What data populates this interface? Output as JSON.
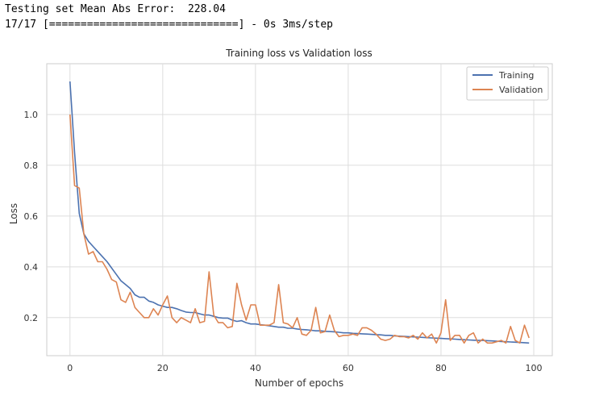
{
  "console": {
    "line1": "Testing set Mean Abs Error:  228.04",
    "line2": "17/17 [==============================] - 0s 3ms/step"
  },
  "chart_data": {
    "type": "line",
    "title": "Training loss vs Validation loss",
    "xlabel": "Number of epochs",
    "ylabel": "Loss",
    "xlim": [
      -5,
      104
    ],
    "ylim": [
      0.05,
      1.2
    ],
    "xticks": [
      0,
      20,
      40,
      60,
      80,
      100
    ],
    "yticks": [
      0.2,
      0.4,
      0.6,
      0.8,
      1.0
    ],
    "xtick_labels": [
      "0",
      "20",
      "40",
      "60",
      "80",
      "100"
    ],
    "ytick_labels": [
      "0.2",
      "0.4",
      "0.6",
      "0.8",
      "1.0"
    ],
    "grid": true,
    "legend_position": "top-right",
    "series": [
      {
        "name": "Training",
        "color": "#4c72b0",
        "x": [
          0,
          1,
          2,
          3,
          4,
          5,
          6,
          7,
          8,
          9,
          10,
          11,
          12,
          13,
          14,
          15,
          16,
          17,
          18,
          19,
          20,
          21,
          22,
          23,
          24,
          25,
          26,
          27,
          28,
          29,
          30,
          31,
          32,
          33,
          34,
          35,
          36,
          37,
          38,
          39,
          40,
          41,
          42,
          43,
          44,
          45,
          46,
          47,
          48,
          49,
          50,
          51,
          52,
          53,
          54,
          55,
          56,
          57,
          58,
          59,
          60,
          61,
          62,
          63,
          64,
          65,
          66,
          67,
          68,
          69,
          70,
          71,
          72,
          73,
          74,
          75,
          76,
          77,
          78,
          79,
          80,
          81,
          82,
          83,
          84,
          85,
          86,
          87,
          88,
          89,
          90,
          91,
          92,
          93,
          94,
          95,
          96,
          97,
          98,
          99
        ],
        "values": [
          1.13,
          0.85,
          0.61,
          0.53,
          0.5,
          0.48,
          0.46,
          0.44,
          0.42,
          0.395,
          0.37,
          0.345,
          0.33,
          0.315,
          0.29,
          0.28,
          0.28,
          0.265,
          0.26,
          0.25,
          0.245,
          0.24,
          0.24,
          0.235,
          0.228,
          0.222,
          0.22,
          0.22,
          0.215,
          0.21,
          0.21,
          0.205,
          0.2,
          0.198,
          0.198,
          0.19,
          0.185,
          0.188,
          0.18,
          0.175,
          0.175,
          0.172,
          0.17,
          0.168,
          0.165,
          0.162,
          0.162,
          0.158,
          0.158,
          0.155,
          0.153,
          0.152,
          0.15,
          0.148,
          0.148,
          0.146,
          0.145,
          0.144,
          0.142,
          0.14,
          0.14,
          0.138,
          0.137,
          0.136,
          0.135,
          0.134,
          0.133,
          0.132,
          0.13,
          0.13,
          0.128,
          0.127,
          0.126,
          0.125,
          0.124,
          0.123,
          0.122,
          0.121,
          0.12,
          0.119,
          0.118,
          0.117,
          0.116,
          0.115,
          0.114,
          0.113,
          0.112,
          0.111,
          0.11,
          0.11,
          0.109,
          0.108,
          0.107,
          0.106,
          0.105,
          0.104,
          0.103,
          0.102,
          0.101,
          0.1
        ]
      },
      {
        "name": "Validation",
        "color": "#dd8452",
        "x": [
          0,
          1,
          2,
          3,
          4,
          5,
          6,
          7,
          8,
          9,
          10,
          11,
          12,
          13,
          14,
          15,
          16,
          17,
          18,
          19,
          20,
          21,
          22,
          23,
          24,
          25,
          26,
          27,
          28,
          29,
          30,
          31,
          32,
          33,
          34,
          35,
          36,
          37,
          38,
          39,
          40,
          41,
          42,
          43,
          44,
          45,
          46,
          47,
          48,
          49,
          50,
          51,
          52,
          53,
          54,
          55,
          56,
          57,
          58,
          59,
          60,
          61,
          62,
          63,
          64,
          65,
          66,
          67,
          68,
          69,
          70,
          71,
          72,
          73,
          74,
          75,
          76,
          77,
          78,
          79,
          80,
          81,
          82,
          83,
          84,
          85,
          86,
          87,
          88,
          89,
          90,
          91,
          92,
          93,
          94,
          95,
          96,
          97,
          98,
          99
        ],
        "values": [
          1.0,
          0.72,
          0.71,
          0.53,
          0.45,
          0.46,
          0.42,
          0.42,
          0.39,
          0.35,
          0.34,
          0.27,
          0.26,
          0.3,
          0.24,
          0.22,
          0.2,
          0.2,
          0.235,
          0.21,
          0.25,
          0.285,
          0.2,
          0.18,
          0.2,
          0.19,
          0.18,
          0.235,
          0.18,
          0.185,
          0.38,
          0.21,
          0.18,
          0.18,
          0.16,
          0.165,
          0.335,
          0.25,
          0.19,
          0.25,
          0.25,
          0.17,
          0.17,
          0.17,
          0.18,
          0.33,
          0.18,
          0.175,
          0.16,
          0.2,
          0.135,
          0.13,
          0.15,
          0.24,
          0.14,
          0.145,
          0.21,
          0.15,
          0.125,
          0.13,
          0.13,
          0.135,
          0.13,
          0.16,
          0.16,
          0.15,
          0.135,
          0.115,
          0.11,
          0.115,
          0.13,
          0.125,
          0.125,
          0.12,
          0.13,
          0.115,
          0.14,
          0.12,
          0.135,
          0.1,
          0.14,
          0.27,
          0.11,
          0.13,
          0.13,
          0.1,
          0.13,
          0.14,
          0.1,
          0.115,
          0.1,
          0.1,
          0.105,
          0.11,
          0.1,
          0.165,
          0.11,
          0.1,
          0.17,
          0.12
        ]
      }
    ]
  }
}
